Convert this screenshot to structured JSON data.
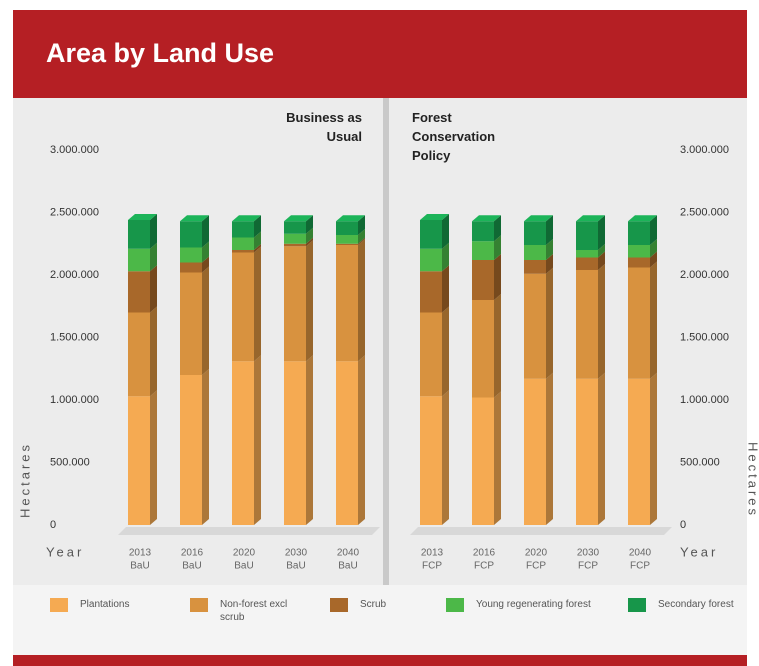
{
  "title": "Area by Land Use",
  "chart_data": [
    {
      "type": "bar",
      "stacked": true,
      "title": "Business as Usual",
      "scenario": "BaU",
      "xlabel": "Year",
      "ylabel": "Hectares",
      "categories": [
        "2013",
        "2016",
        "2020",
        "2030",
        "2040"
      ],
      "series": [
        {
          "name": "Plantations",
          "color": "#f5aa52",
          "values": [
            1030000,
            1200000,
            1310000,
            1310000,
            1310000
          ]
        },
        {
          "name": "Non-forest excl scrub",
          "color": "#d8923f",
          "values": [
            670000,
            820000,
            870000,
            920000,
            930000
          ]
        },
        {
          "name": "Scrub",
          "color": "#a8682a",
          "values": [
            330000,
            80000,
            20000,
            20000,
            10000
          ]
        },
        {
          "name": "Young regenerating forest",
          "color": "#4cb848",
          "values": [
            180000,
            120000,
            100000,
            80000,
            70000
          ]
        },
        {
          "name": "Secondary forest",
          "color": "#17964a",
          "values": [
            230000,
            210000,
            130000,
            100000,
            110000
          ]
        }
      ],
      "ylim": [
        0,
        3000000
      ],
      "yticks": [
        {
          "value": 0,
          "label": "0"
        },
        {
          "value": 500000,
          "label": "500.000"
        },
        {
          "value": 1000000,
          "label": "1.000.000"
        },
        {
          "value": 1500000,
          "label": "1.500.000"
        },
        {
          "value": 2000000,
          "label": "2.000.000"
        },
        {
          "value": 2500000,
          "label": "2.500.000"
        },
        {
          "value": 3000000,
          "label": "3.000.000"
        }
      ]
    },
    {
      "type": "bar",
      "stacked": true,
      "title": "Forest Conservation Policy",
      "scenario": "FCP",
      "xlabel": "Year",
      "ylabel": "Hectares",
      "categories": [
        "2013",
        "2016",
        "2020",
        "2030",
        "2040"
      ],
      "series": [
        {
          "name": "Plantations",
          "color": "#f5aa52",
          "values": [
            1030000,
            1020000,
            1170000,
            1170000,
            1170000
          ]
        },
        {
          "name": "Non-forest excl scrub",
          "color": "#d8923f",
          "values": [
            670000,
            780000,
            840000,
            870000,
            890000
          ]
        },
        {
          "name": "Scrub",
          "color": "#a8682a",
          "values": [
            330000,
            320000,
            110000,
            100000,
            80000
          ]
        },
        {
          "name": "Young regenerating forest",
          "color": "#4cb848",
          "values": [
            180000,
            150000,
            120000,
            60000,
            100000
          ]
        },
        {
          "name": "Secondary forest",
          "color": "#17964a",
          "values": [
            230000,
            160000,
            190000,
            230000,
            190000
          ]
        }
      ],
      "ylim": [
        0,
        3000000
      ],
      "yticks": [
        {
          "value": 0,
          "label": "0"
        },
        {
          "value": 500000,
          "label": "500.000"
        },
        {
          "value": 1000000,
          "label": "1.000.000"
        },
        {
          "value": 1500000,
          "label": "1.500.000"
        },
        {
          "value": 2000000,
          "label": "2.000.000"
        },
        {
          "value": 2500000,
          "label": "2.500.000"
        },
        {
          "value": 3000000,
          "label": "3.000.000"
        }
      ]
    }
  ]
}
